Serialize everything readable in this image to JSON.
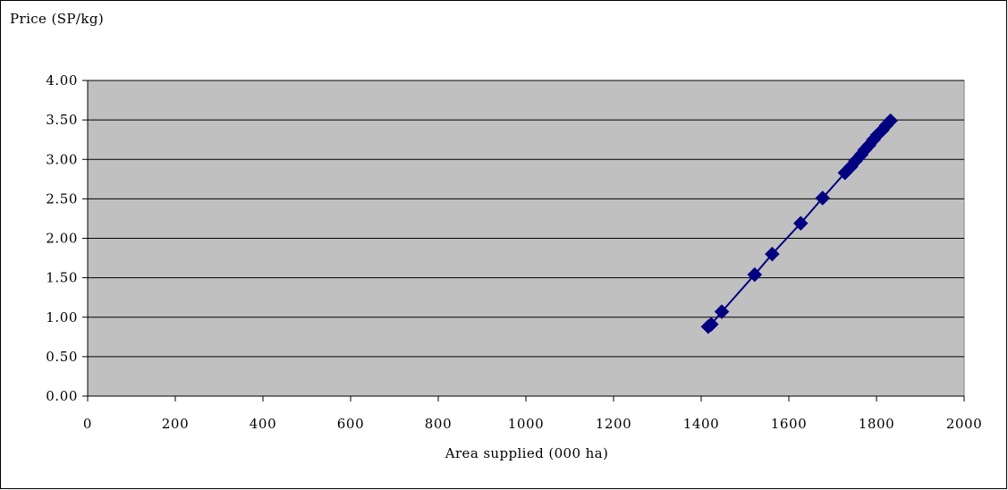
{
  "chart_data": {
    "type": "scatter",
    "title": "",
    "ylabel": "Price (SP/kg)",
    "xlabel": "Area supplied (000 ha)",
    "xlim": [
      0,
      2000
    ],
    "ylim": [
      0,
      4
    ],
    "x_ticks": [
      "0",
      "200",
      "400",
      "600",
      "800",
      "1000",
      "1200",
      "1400",
      "1600",
      "1800",
      "2000"
    ],
    "y_ticks": [
      "0.00",
      "0.50",
      "1.00",
      "1.50",
      "2.00",
      "2.50",
      "3.00",
      "3.50",
      "4.00"
    ],
    "grid": "horizontal",
    "legend": "none",
    "plot_background": "#c0c0c0",
    "series": [
      {
        "color": "#000080",
        "marker": "diamond",
        "line": true,
        "points": [
          {
            "x": 1416,
            "y": 0.88
          },
          {
            "x": 1423,
            "y": 0.91
          },
          {
            "x": 1447,
            "y": 1.07
          },
          {
            "x": 1522,
            "y": 1.54
          },
          {
            "x": 1562,
            "y": 1.8
          },
          {
            "x": 1627,
            "y": 2.19
          },
          {
            "x": 1677,
            "y": 2.51
          },
          {
            "x": 1728,
            "y": 2.83
          },
          {
            "x": 1742,
            "y": 2.91
          },
          {
            "x": 1752,
            "y": 2.98
          },
          {
            "x": 1765,
            "y": 3.06
          },
          {
            "x": 1773,
            "y": 3.12
          },
          {
            "x": 1783,
            "y": 3.18
          },
          {
            "x": 1793,
            "y": 3.25
          },
          {
            "x": 1802,
            "y": 3.31
          },
          {
            "x": 1813,
            "y": 3.37
          },
          {
            "x": 1822,
            "y": 3.43
          },
          {
            "x": 1832,
            "y": 3.49
          }
        ]
      }
    ]
  }
}
